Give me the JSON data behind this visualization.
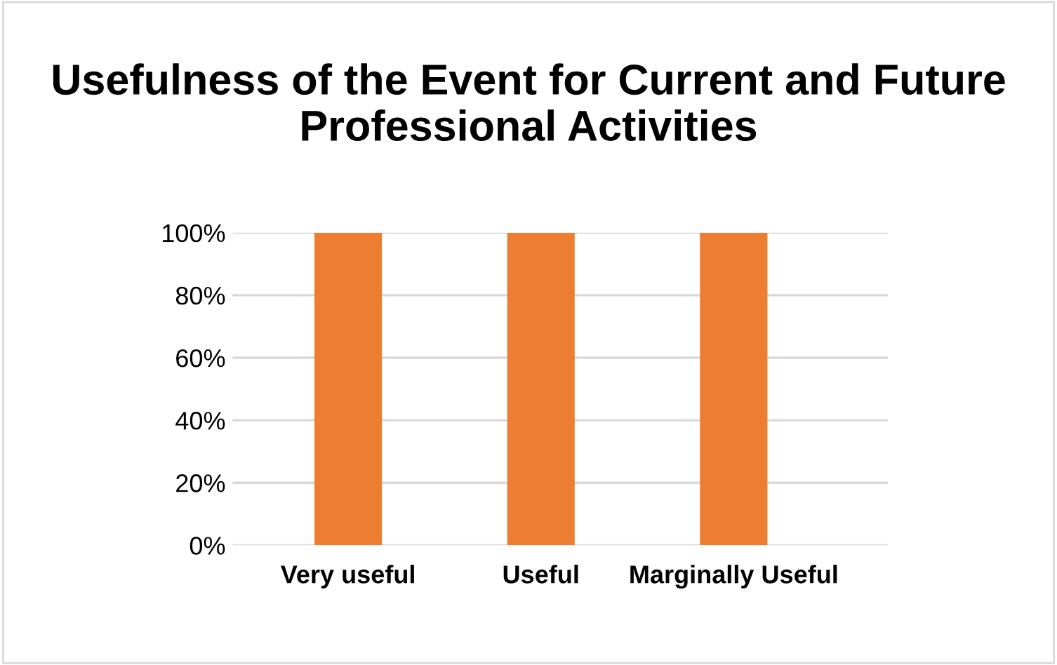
{
  "chart_data": {
    "type": "bar",
    "title": "Usefulness of the Event for Current and Future Professional Activities",
    "categories": [
      "Very useful",
      "Useful",
      "Marginally Useful"
    ],
    "values": [
      100,
      100,
      100
    ],
    "color": "#ed7d31",
    "ylim": [
      0,
      100
    ],
    "yticks": [
      {
        "value": 0,
        "label": "0%"
      },
      {
        "value": 20,
        "label": "20%"
      },
      {
        "value": 40,
        "label": "40%"
      },
      {
        "value": 60,
        "label": "60%"
      },
      {
        "value": 80,
        "label": "80%"
      },
      {
        "value": 100,
        "label": "100%"
      }
    ],
    "grid": "y",
    "legend": false
  }
}
